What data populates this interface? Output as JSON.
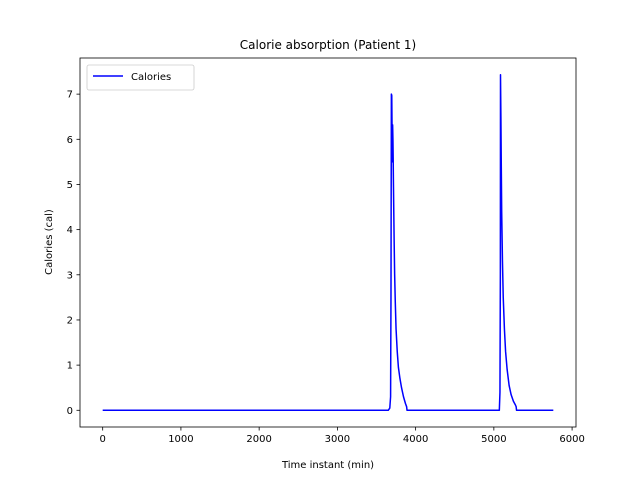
{
  "chart_data": {
    "type": "line",
    "title": "Calorie absorption (Patient 1)",
    "xlabel": "Time instant (min)",
    "ylabel": "Calories (cal)",
    "xlim": [
      -290,
      6050
    ],
    "ylim": [
      -0.37,
      7.8
    ],
    "xticks": [
      0,
      1000,
      2000,
      3000,
      4000,
      5000,
      6000
    ],
    "yticks": [
      0,
      1,
      2,
      3,
      4,
      5,
      6,
      7
    ],
    "grid": false,
    "legend": {
      "position": "top-left",
      "entries": [
        "Calories"
      ]
    },
    "series": [
      {
        "name": "Calories",
        "color": "#0000ff",
        "x": [
          0,
          3650,
          3670,
          3680,
          3685,
          3690,
          3695,
          3700,
          3703,
          3706,
          3710,
          3713,
          3716,
          3720,
          3725,
          3732,
          3740,
          3750,
          3765,
          3780,
          3800,
          3820,
          3845,
          3870,
          3885,
          3890,
          5070,
          5078,
          5083,
          5085,
          5090,
          5095,
          5100,
          5110,
          5120,
          5135,
          5150,
          5170,
          5195,
          5220,
          5250,
          5275,
          5285,
          5290,
          5760
        ],
        "y": [
          0,
          0,
          0.05,
          0.3,
          2.5,
          7.0,
          6.97,
          6.0,
          5.5,
          6.32,
          6.0,
          5.6,
          5.1,
          4.5,
          3.8,
          3.0,
          2.4,
          1.8,
          1.3,
          0.95,
          0.7,
          0.5,
          0.3,
          0.15,
          0.08,
          0,
          0,
          0.4,
          3.0,
          7.43,
          6.5,
          5.4,
          4.4,
          3.3,
          2.5,
          1.8,
          1.3,
          0.9,
          0.55,
          0.35,
          0.2,
          0.12,
          0.08,
          0,
          0
        ]
      }
    ]
  }
}
